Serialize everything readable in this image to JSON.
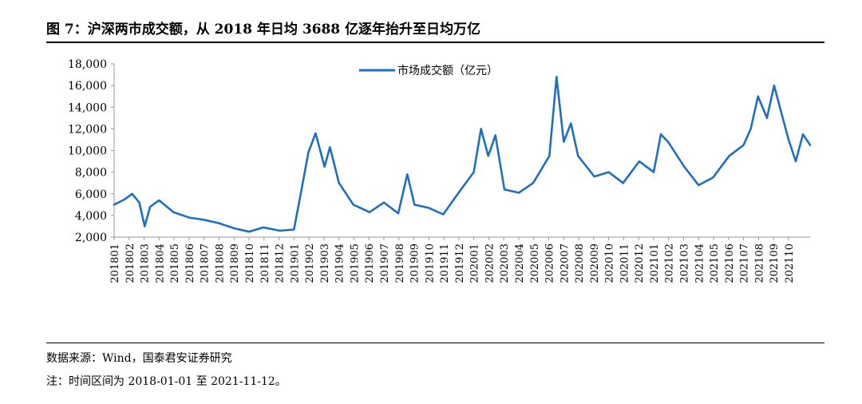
{
  "header": {
    "title": "图 7：沪深两市成交额，从 2018 年日均 3688 亿逐年抬升至日均万亿"
  },
  "footer": {
    "source": "数据来源：Wind，国泰君安证券研究",
    "note": "注：时间区间为 2018-01-01 至 2021-11-12。"
  },
  "colors": {
    "series": "#1f6fc0",
    "axis": "#999999",
    "text": "#000000"
  },
  "chart_data": {
    "type": "line",
    "title": "",
    "xlabel": "",
    "ylabel": "",
    "legend_position": "top-center",
    "grid": false,
    "ylim": [
      2000,
      18000
    ],
    "y_ticks": [
      "2,000",
      "4,000",
      "6,000",
      "8,000",
      "10,000",
      "12,000",
      "14,000",
      "16,000",
      "18,000"
    ],
    "x_ticks": [
      "201801",
      "201802",
      "201803",
      "201804",
      "201805",
      "201806",
      "201807",
      "201808",
      "201809",
      "201810",
      "201811",
      "201812",
      "201901",
      "201902",
      "201903",
      "201904",
      "201905",
      "201906",
      "201907",
      "201908",
      "201909",
      "201910",
      "201911",
      "201912",
      "202001",
      "202002",
      "202003",
      "202004",
      "202005",
      "202006",
      "202007",
      "202008",
      "202009",
      "202010",
      "202011",
      "202012",
      "202101",
      "202102",
      "202103",
      "202104",
      "202105",
      "202106",
      "202107",
      "202108",
      "202109",
      "202110"
    ],
    "x": [
      2018.0,
      2018.06,
      2018.1,
      2018.14,
      2018.17,
      2018.2,
      2018.25,
      2018.33,
      2018.42,
      2018.5,
      2018.58,
      2018.67,
      2018.75,
      2018.83,
      2018.92,
      2019.0,
      2019.04,
      2019.08,
      2019.12,
      2019.17,
      2019.2,
      2019.25,
      2019.33,
      2019.42,
      2019.5,
      2019.58,
      2019.63,
      2019.67,
      2019.75,
      2019.83,
      2019.92,
      2020.0,
      2020.04,
      2020.08,
      2020.12,
      2020.17,
      2020.25,
      2020.33,
      2020.42,
      2020.46,
      2020.5,
      2020.54,
      2020.58,
      2020.67,
      2020.75,
      2020.83,
      2020.92,
      2021.0,
      2021.04,
      2021.08,
      2021.17,
      2021.25,
      2021.33,
      2021.42,
      2021.5,
      2021.54,
      2021.58,
      2021.63,
      2021.67,
      2021.71,
      2021.75,
      2021.79,
      2021.83,
      2021.87
    ],
    "series": [
      {
        "name": "市场成交额（亿元）",
        "values": [
          5000,
          5500,
          6000,
          5200,
          3000,
          4800,
          5400,
          4300,
          3800,
          3600,
          3300,
          2800,
          2500,
          2900,
          2600,
          2700,
          6200,
          9800,
          11600,
          8500,
          10300,
          7000,
          5000,
          4300,
          5200,
          4200,
          7800,
          5000,
          4700,
          4100,
          6200,
          8000,
          12000,
          9500,
          11400,
          6400,
          6100,
          7000,
          9500,
          16800,
          10800,
          12500,
          9500,
          7600,
          8000,
          7000,
          9000,
          8000,
          11500,
          10800,
          8500,
          6800,
          7500,
          9500,
          10500,
          12000,
          15000,
          13000,
          16000,
          13500,
          11000,
          9000,
          11500,
          10500
        ]
      }
    ]
  }
}
